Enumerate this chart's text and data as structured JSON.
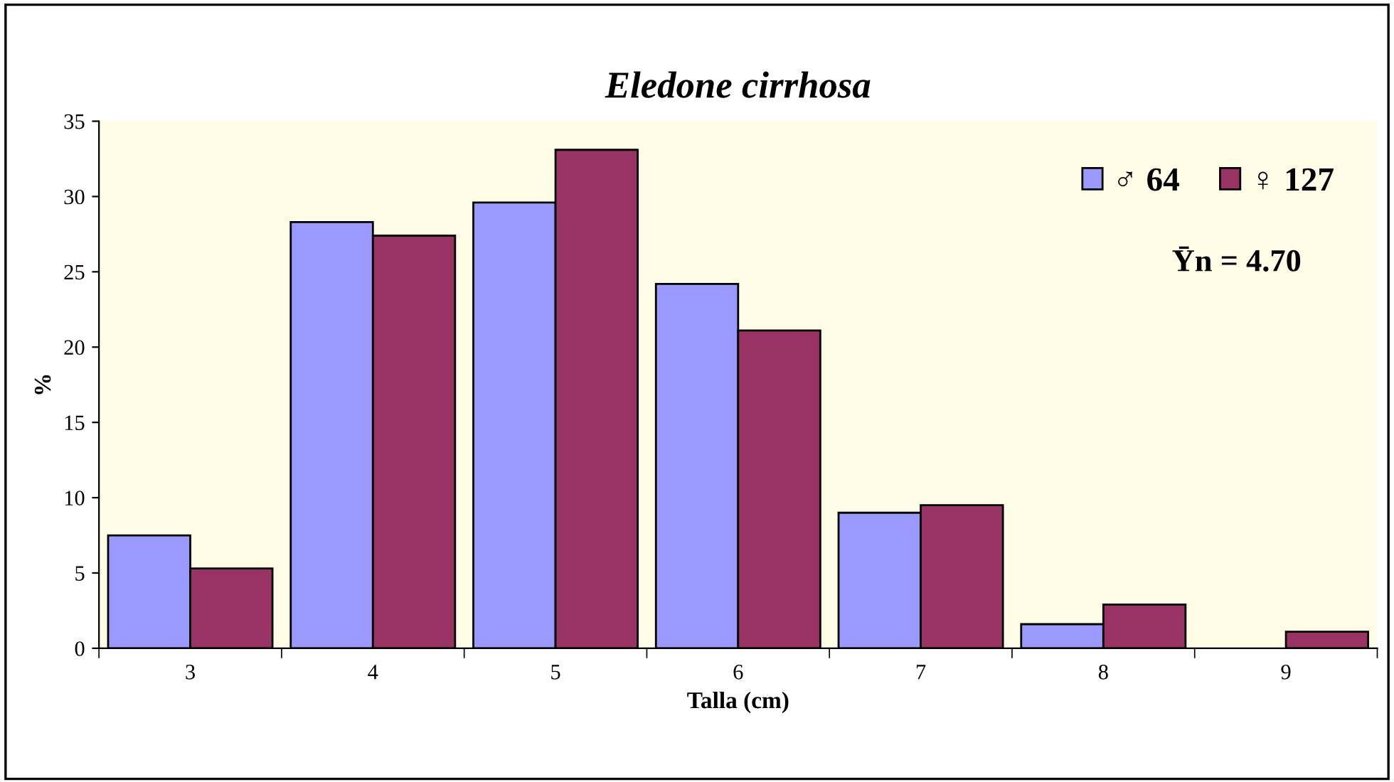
{
  "chart_data": {
    "type": "bar",
    "title": "Eledone cirrhosa",
    "xlabel": "Talla (cm)",
    "ylabel": "%",
    "categories": [
      "3",
      "4",
      "5",
      "6",
      "7",
      "8",
      "9"
    ],
    "series": [
      {
        "name": "♂ 64",
        "color": "#9999ff",
        "values": [
          7.5,
          28.3,
          29.6,
          24.2,
          9.0,
          1.6,
          null
        ]
      },
      {
        "name": "♀ 127",
        "color": "#993366",
        "values": [
          5.3,
          27.4,
          33.1,
          21.1,
          9.5,
          2.9,
          1.1
        ]
      }
    ],
    "ylim": [
      0,
      35
    ],
    "yticks": [
      0,
      5,
      10,
      15,
      20,
      25,
      30,
      35
    ],
    "grid": false,
    "legend": "top right",
    "annotations": [
      "Ȳn = 4.70"
    ]
  }
}
